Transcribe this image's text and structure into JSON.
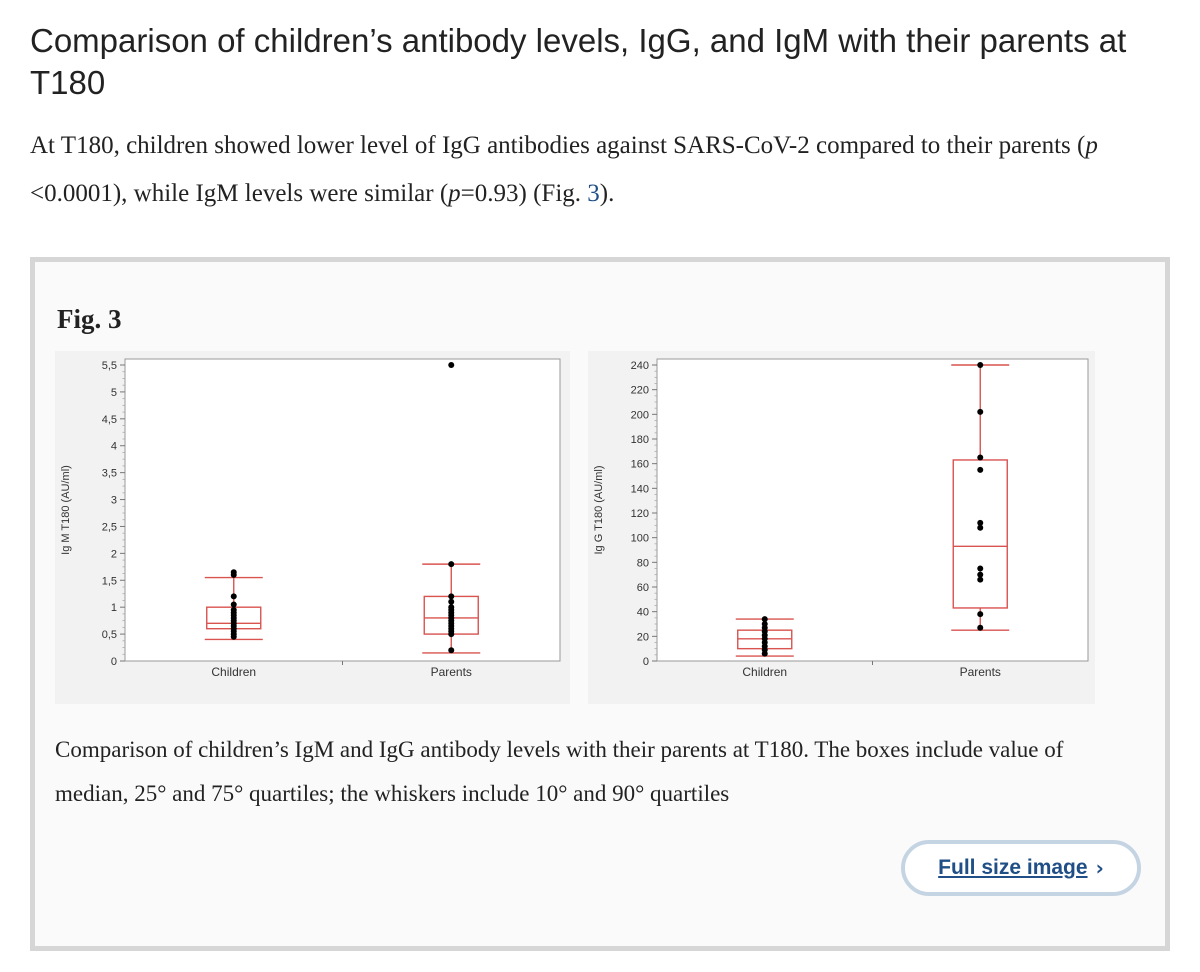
{
  "article": {
    "heading": "Comparison of children’s antibody levels, IgG, and IgM with their parents at T180",
    "intro": {
      "part1": "At T180, children showed lower level of IgG antibodies against SARS-CoV-2 compared to their parents (",
      "p1_italic": "p",
      "part2": " <0.0001), while IgM levels were similar (",
      "p2_italic": "p",
      "part3": "=0.93) (Fig. ",
      "fig_ref": "3",
      "part4": ")."
    }
  },
  "figure": {
    "label": "Fig. 3",
    "caption": "Comparison of children’s IgM and IgG antibody levels with their parents at T180. The boxes include value of median, 25° and 75° quartiles; the whiskers include 10° and 90° quartiles",
    "full_size_label": "Full size image",
    "chevron_icon": "chevron-right-icon",
    "colors": {
      "box": "#d9534f",
      "point": "#000000",
      "link": "#1f4f86"
    }
  },
  "chart_data": [
    {
      "type": "box",
      "ylabel": "Ig M T180 (AU/ml)",
      "ylim": [
        0,
        5.5
      ],
      "yticks": [
        0,
        0.5,
        1,
        1.5,
        2,
        2.5,
        3,
        3.5,
        4,
        4.5,
        5,
        5.5
      ],
      "ytick_labels": [
        "0",
        "0,5",
        "1",
        "1,5",
        "2",
        "2,5",
        "3",
        "3,5",
        "4",
        "4,5",
        "5",
        "5,5"
      ],
      "categories": [
        "Children",
        "Parents"
      ],
      "boxes": [
        {
          "category": "Children",
          "whisker_low": 0.4,
          "q1": 0.6,
          "median": 0.7,
          "q3": 1.0,
          "whisker_high": 1.55,
          "points": [
            1.65,
            1.6,
            1.2,
            1.05,
            0.95,
            0.9,
            0.85,
            0.8,
            0.75,
            0.7,
            0.65,
            0.6,
            0.55,
            0.5,
            0.45
          ]
        },
        {
          "category": "Parents",
          "whisker_low": 0.15,
          "q1": 0.5,
          "median": 0.8,
          "q3": 1.2,
          "whisker_high": 1.8,
          "points": [
            5.5,
            1.8,
            1.2,
            1.1,
            1.0,
            0.95,
            0.9,
            0.85,
            0.8,
            0.75,
            0.7,
            0.65,
            0.6,
            0.55,
            0.5,
            0.2
          ]
        }
      ]
    },
    {
      "type": "box",
      "ylabel": "Ig G T180 (AU/ml)",
      "ylim": [
        0,
        240
      ],
      "yticks": [
        0,
        20,
        40,
        60,
        80,
        100,
        120,
        140,
        160,
        180,
        200,
        220,
        240
      ],
      "ytick_labels": [
        "0",
        "20",
        "40",
        "60",
        "80",
        "100",
        "120",
        "140",
        "160",
        "180",
        "200",
        "220",
        "240"
      ],
      "categories": [
        "Children",
        "Parents"
      ],
      "boxes": [
        {
          "category": "Children",
          "whisker_low": 4,
          "q1": 10,
          "median": 18,
          "q3": 25,
          "whisker_high": 34,
          "points": [
            34,
            30,
            27,
            24,
            21,
            18,
            15,
            12,
            9,
            6
          ]
        },
        {
          "category": "Parents",
          "whisker_low": 25,
          "q1": 43,
          "median": 93,
          "q3": 163,
          "whisker_high": 240,
          "points": [
            240,
            202,
            165,
            155,
            112,
            108,
            75,
            70,
            66,
            38,
            27
          ]
        }
      ]
    }
  ]
}
